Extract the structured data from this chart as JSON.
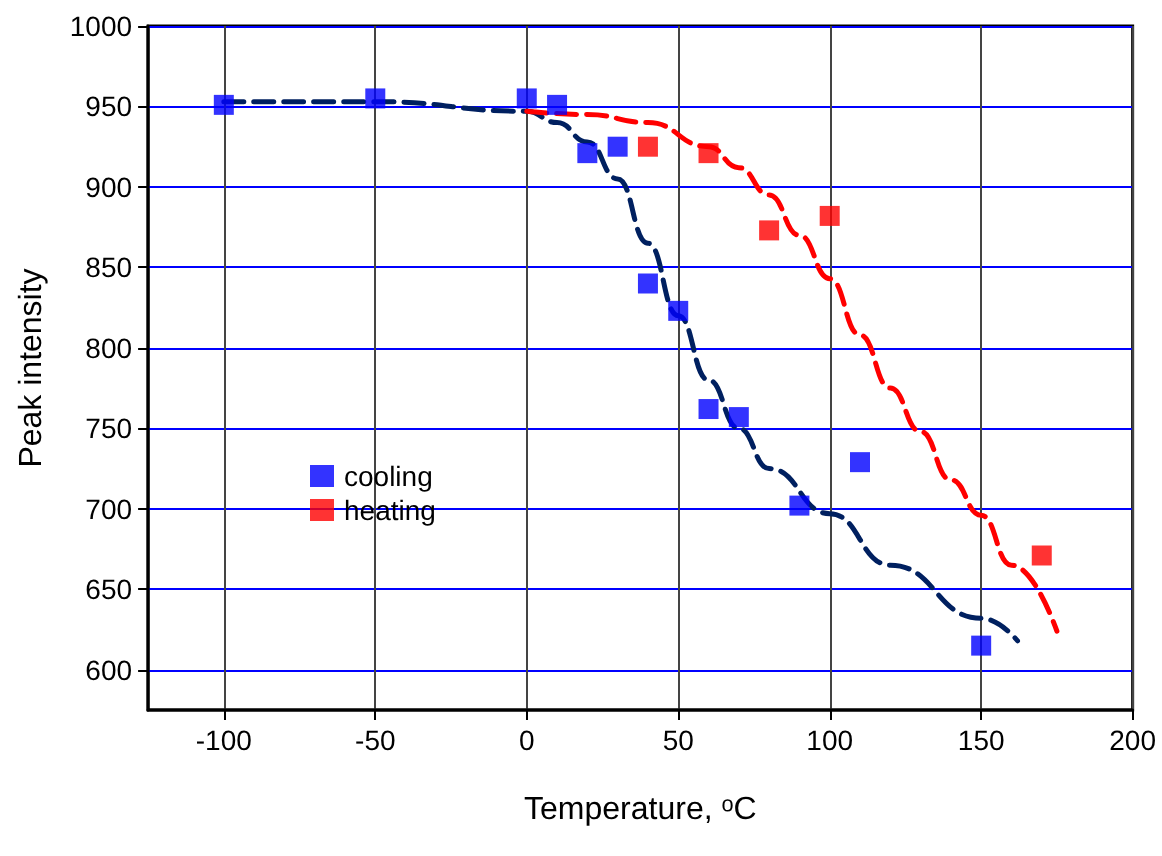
{
  "chart_data": {
    "type": "scatter",
    "xlabel": "Temperature, ᵒC",
    "ylabel": "Peak intensity",
    "xlim": [
      -125,
      200
    ],
    "ylim": [
      575,
      1000
    ],
    "xticks": [
      -100,
      -50,
      0,
      50,
      100,
      150,
      200
    ],
    "yticks": [
      600,
      650,
      700,
      750,
      800,
      850,
      900,
      950,
      1000
    ],
    "grid": true,
    "legend": "left",
    "marker": "square",
    "series": [
      {
        "name": "cooling",
        "color": "#0000ff",
        "x": [
          -100,
          -50,
          0,
          10,
          20,
          30,
          40,
          50,
          60,
          70,
          90,
          110,
          150
        ],
        "values": [
          951,
          955,
          955,
          951,
          921,
          925,
          840,
          823,
          762,
          757,
          702,
          729,
          615
        ]
      },
      {
        "name": "heating",
        "color": "#ff0000",
        "x": [
          40,
          60,
          80,
          100,
          170
        ],
        "values": [
          925,
          921,
          873,
          882,
          671
        ]
      },
      {
        "type": "line",
        "color": "#002060",
        "marker": "none",
        "line_style": "dashed",
        "x": [
          -100,
          -50,
          0,
          10,
          20,
          30,
          40,
          50,
          60,
          70,
          80,
          100,
          120,
          150,
          162
        ],
        "values": [
          953,
          953,
          947,
          940,
          928,
          905,
          865,
          820,
          780,
          750,
          725,
          697,
          665,
          632,
          618
        ]
      },
      {
        "type": "line",
        "color": "#ff0000",
        "marker": "none",
        "line_style": "dashed",
        "x": [
          0,
          20,
          40,
          60,
          70,
          80,
          90,
          100,
          110,
          120,
          130,
          140,
          150,
          160,
          175
        ],
        "values": [
          947,
          945,
          940,
          925,
          912,
          895,
          870,
          843,
          808,
          775,
          748,
          718,
          696,
          665,
          624
        ]
      }
    ]
  }
}
